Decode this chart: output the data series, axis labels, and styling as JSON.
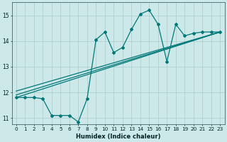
{
  "xlabel": "Humidex (Indice chaleur)",
  "bg_color": "#cce8e8",
  "line_color": "#007878",
  "grid_color": "#aacccc",
  "xlim": [
    -0.5,
    23.5
  ],
  "ylim": [
    10.75,
    15.5
  ],
  "yticks": [
    11,
    12,
    13,
    14,
    15
  ],
  "xticks": [
    0,
    1,
    2,
    3,
    4,
    5,
    6,
    7,
    8,
    9,
    10,
    11,
    12,
    13,
    14,
    15,
    16,
    17,
    18,
    19,
    20,
    21,
    22,
    23
  ],
  "line1_x": [
    0,
    1,
    2,
    3,
    4,
    5,
    6,
    7,
    8,
    9,
    10,
    11,
    12,
    13,
    14,
    15,
    16,
    17,
    18,
    19,
    20,
    21,
    22,
    23
  ],
  "line1_y": [
    11.8,
    11.8,
    11.8,
    11.75,
    11.1,
    11.1,
    11.1,
    10.85,
    11.75,
    14.05,
    14.35,
    13.55,
    13.75,
    14.45,
    15.05,
    15.2,
    14.65,
    13.2,
    14.65,
    14.2,
    14.3,
    14.35,
    14.35,
    14.35
  ],
  "line2_x": [
    0,
    23
  ],
  "line2_y": [
    11.8,
    14.35
  ],
  "line3_x": [
    0,
    23
  ],
  "line3_y": [
    11.9,
    14.35
  ],
  "line4_x": [
    0,
    23
  ],
  "line4_y": [
    12.05,
    14.35
  ]
}
